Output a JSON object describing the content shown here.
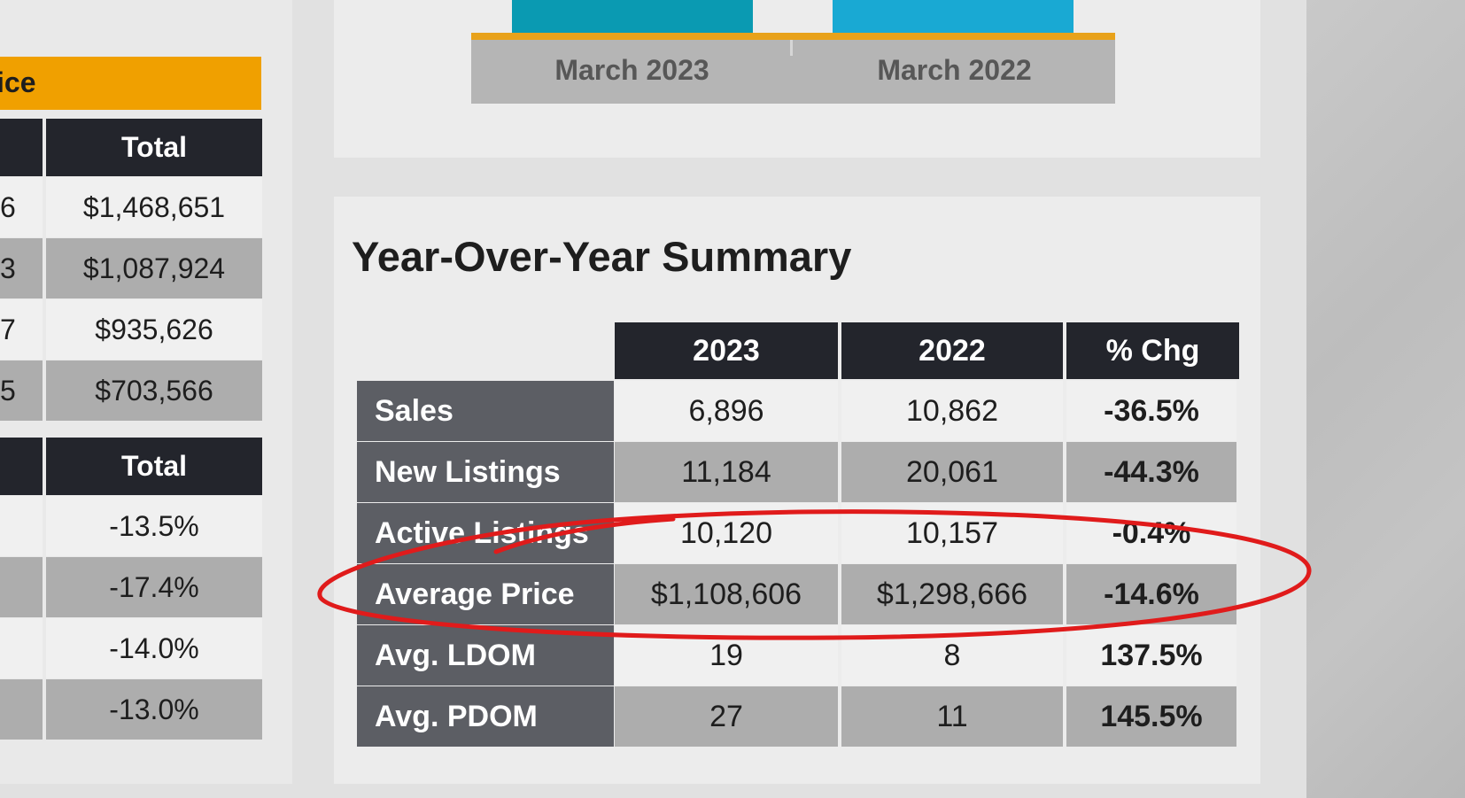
{
  "left_table": {
    "header_partial": "ice",
    "price_header": "Total",
    "price_stubs": [
      "6",
      "3",
      "7",
      "5"
    ],
    "price_values": [
      "$1,468,651",
      "$1,087,924",
      "$935,626",
      "$703,566"
    ],
    "change_header": "Total",
    "change_values": [
      "-13.5%",
      "-17.4%",
      "-14.0%",
      "-13.0%"
    ]
  },
  "chart_data": {
    "type": "bar",
    "categories": [
      "March 2023",
      "March 2022"
    ],
    "colors": [
      "#0a9ab2",
      "#19a9d3"
    ]
  },
  "summary": {
    "title": "Year-Over-Year Summary",
    "columns": [
      "2023",
      "2022",
      "% Chg"
    ],
    "rows": [
      {
        "label": "Sales",
        "y2023": "6,896",
        "y2022": "10,862",
        "chg": "-36.5%"
      },
      {
        "label": "New Listings",
        "y2023": "11,184",
        "y2022": "20,061",
        "chg": "-44.3%"
      },
      {
        "label": "Active Listings",
        "y2023": "10,120",
        "y2022": "10,157",
        "chg": "-0.4%"
      },
      {
        "label": "Average Price",
        "y2023": "$1,108,606",
        "y2022": "$1,298,666",
        "chg": "-14.6%"
      },
      {
        "label": "Avg. LDOM",
        "y2023": "19",
        "y2022": "8",
        "chg": "137.5%"
      },
      {
        "label": "Avg. PDOM",
        "y2023": "27",
        "y2022": "11",
        "chg": "145.5%"
      }
    ]
  },
  "annotation": {
    "highlight_color": "#e01b1b"
  }
}
